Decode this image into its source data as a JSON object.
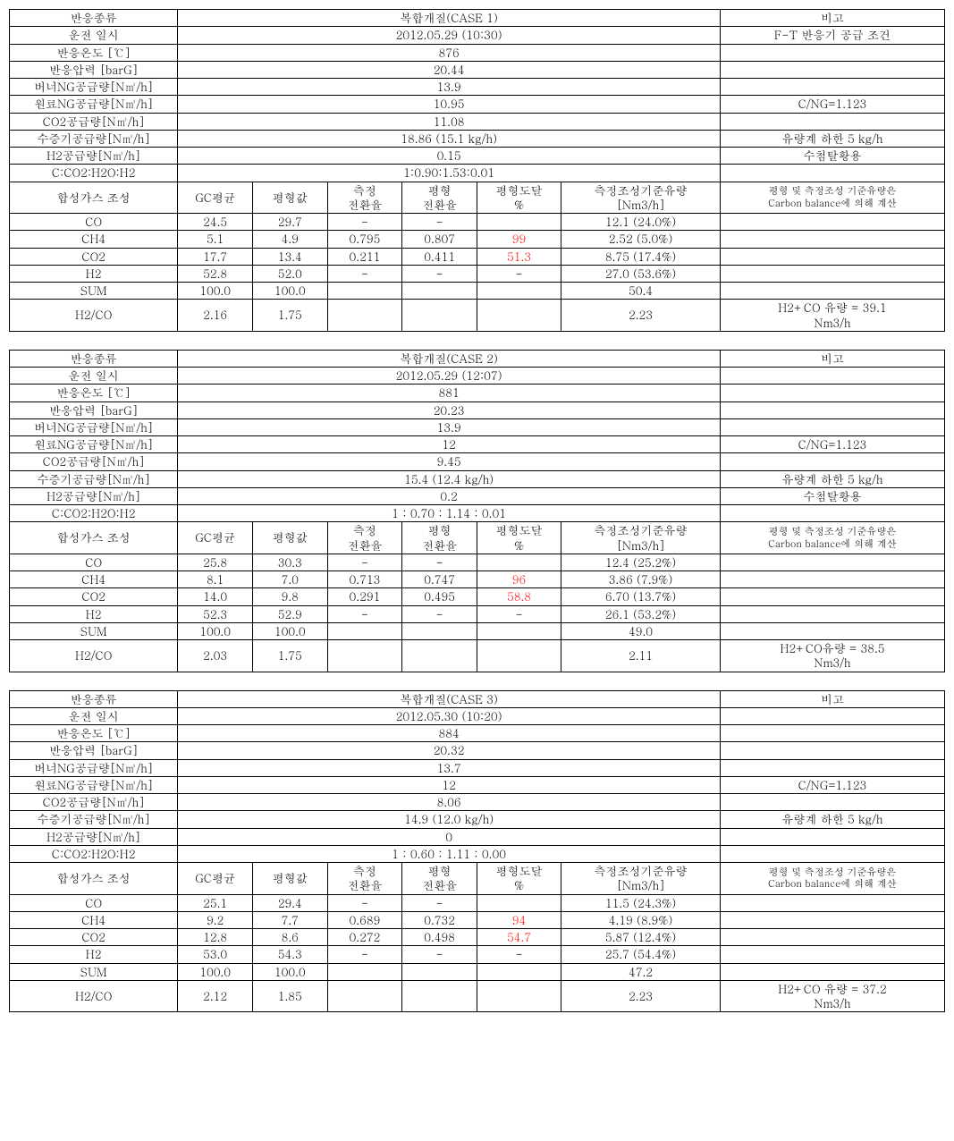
{
  "labels": {
    "reaction_type": "반응종류",
    "run_datetime": "운전 일시",
    "reaction_temp": "반응온도 [℃]",
    "reaction_pressure": "반응압력 [barG]",
    "burner_ng": "버너NG공급량[N㎥/h]",
    "feed_ng": "원료NG공급량[N㎥/h]",
    "co2_supply": "CO2공급량[N㎥/h]",
    "steam_supply": "수증기공급량[N㎥/h]",
    "h2_supply": "H2공급량[N㎥/h]",
    "ratio": "C:CO2:H2O:H2",
    "syngas_comp": "합성가스 조성",
    "gc_mean": "GC평균",
    "equil_value": "평형값",
    "meas_conv_l1": "측정",
    "meas_conv_l2": "전환율",
    "equil_conv_l1": "평형",
    "equil_conv_l2": "전환율",
    "equil_reach_l1": "평형도달",
    "equil_reach_l2": "%",
    "meas_flow_l1": "측정조성기준유량",
    "meas_flow_l2": "[Nm3/h]",
    "remark": "비고",
    "co": "CO",
    "ch4": "CH4",
    "co2": "CO2",
    "h2": "H2",
    "sum": "SUM",
    "h2co": "H2/CO",
    "ft_note": "F-T 반응기 공급 조건",
    "cng_note": "C/NG=1.123",
    "steam_note": "유량계 하한 5 kg/h",
    "h2_note": "수첨탈황용",
    "calc_note_l1": "평형 및 측정조성 기준유량은",
    "calc_note_l2": "Carbon balance에 의해 계산"
  },
  "cases": [
    {
      "title": "복합개질(CASE 1)",
      "datetime": "2012.05.29 (10:30)",
      "temp": "876",
      "pressure": "20.44",
      "burner_ng": "13.9",
      "feed_ng": "10.95",
      "co2": "11.08",
      "steam": "18.86   (15.1 kg/h)",
      "h2": "0.15",
      "ratio": "1:0.90:1.53:0.01",
      "h2_note_show": true,
      "rows": {
        "co": {
          "gc": "24.5",
          "eq": "29.7",
          "mc": "-",
          "ec": "-",
          "er": "",
          "flow": "12.1 (24.0%)"
        },
        "ch4": {
          "gc": "5.1",
          "eq": "4.9",
          "mc": "0.795",
          "ec": "0.807",
          "er": "99",
          "flow": "2.52 (5.0%)"
        },
        "co2": {
          "gc": "17.7",
          "eq": "13.4",
          "mc": "0.211",
          "ec": "0.411",
          "er": "51.3",
          "flow": "8.75 (17.4%)"
        },
        "h2": {
          "gc": "52.8",
          "eq": "52.0",
          "mc": "-",
          "ec": "-",
          "er": "-",
          "flow": "27.0 (53.6%)"
        },
        "sum": {
          "gc": "100.0",
          "eq": "100.0",
          "mc": "",
          "ec": "",
          "er": "",
          "flow": "50.4"
        },
        "h2co": {
          "gc": "2.16",
          "eq": "1.75",
          "mc": "",
          "ec": "",
          "er": "",
          "flow": "2.23"
        }
      },
      "h2co_note_l1": "H2+CO 유량 = 39.1",
      "h2co_note_l2": "Nm3/h"
    },
    {
      "title": "복합개질(CASE 2)",
      "datetime": "2012.05.29 (12:07)",
      "temp": "881",
      "pressure": "20.23",
      "burner_ng": "13.9",
      "feed_ng": "12",
      "co2": "9.45",
      "steam": "15.4   (12.4 kg/h)",
      "h2": "0.2",
      "ratio": "1 : 0.70 : 1.14 : 0.01",
      "h2_note_show": true,
      "rows": {
        "co": {
          "gc": "25.8",
          "eq": "30.3",
          "mc": "-",
          "ec": "-",
          "er": "",
          "flow": "12.4 (25.2%)"
        },
        "ch4": {
          "gc": "8.1",
          "eq": "7.0",
          "mc": "0.713",
          "ec": "0.747",
          "er": "96",
          "flow": "3.86 (7.9%)"
        },
        "co2": {
          "gc": "14.0",
          "eq": "9.8",
          "mc": "0.291",
          "ec": "0.495",
          "er": "58.8",
          "flow": "6.70 (13.7%)"
        },
        "h2": {
          "gc": "52.3",
          "eq": "52.9",
          "mc": "-",
          "ec": "-",
          "er": "-",
          "flow": "26.1 (53.2%)"
        },
        "sum": {
          "gc": "100.0",
          "eq": "100.0",
          "mc": "",
          "ec": "",
          "er": "",
          "flow": "49.0"
        },
        "h2co": {
          "gc": "2.03",
          "eq": "1.75",
          "mc": "",
          "ec": "",
          "er": "",
          "flow": "2.11"
        }
      },
      "h2co_note_l1": "H2+CO유량 = 38.5",
      "h2co_note_l2": "Nm3/h"
    },
    {
      "title": "복합개질(CASE 3)",
      "datetime": "2012.05.30 (10:20)",
      "temp": "884",
      "pressure": "20.32",
      "burner_ng": "13.7",
      "feed_ng": "12",
      "co2": "8.06",
      "steam": "14.9   (12.0 kg/h)",
      "h2": "0",
      "ratio": "1 : 0.60 : 1.11 : 0.00",
      "h2_note_show": false,
      "rows": {
        "co": {
          "gc": "25.1",
          "eq": "29.4",
          "mc": "-",
          "ec": "-",
          "er": "",
          "flow": "11.5 (24.3%)"
        },
        "ch4": {
          "gc": "9.2",
          "eq": "7.7",
          "mc": "0.689",
          "ec": "0.732",
          "er": "94",
          "flow": "4.19 (8.9%)"
        },
        "co2": {
          "gc": "12.8",
          "eq": "8.6",
          "mc": "0.272",
          "ec": "0.498",
          "er": "54.7",
          "flow": "5.87 (12.4%)"
        },
        "h2": {
          "gc": "53.0",
          "eq": "54.3",
          "mc": "-",
          "ec": "-",
          "er": "-",
          "flow": "25.7 (54.4%)"
        },
        "sum": {
          "gc": "100.0",
          "eq": "100.0",
          "mc": "",
          "ec": "",
          "er": "",
          "flow": "47.2"
        },
        "h2co": {
          "gc": "2.12",
          "eq": "1.85",
          "mc": "",
          "ec": "",
          "er": "",
          "flow": "2.23"
        }
      },
      "h2co_note_l1": "H2+CO 유량 = 37.2",
      "h2co_note_l2": "Nm3/h"
    }
  ]
}
